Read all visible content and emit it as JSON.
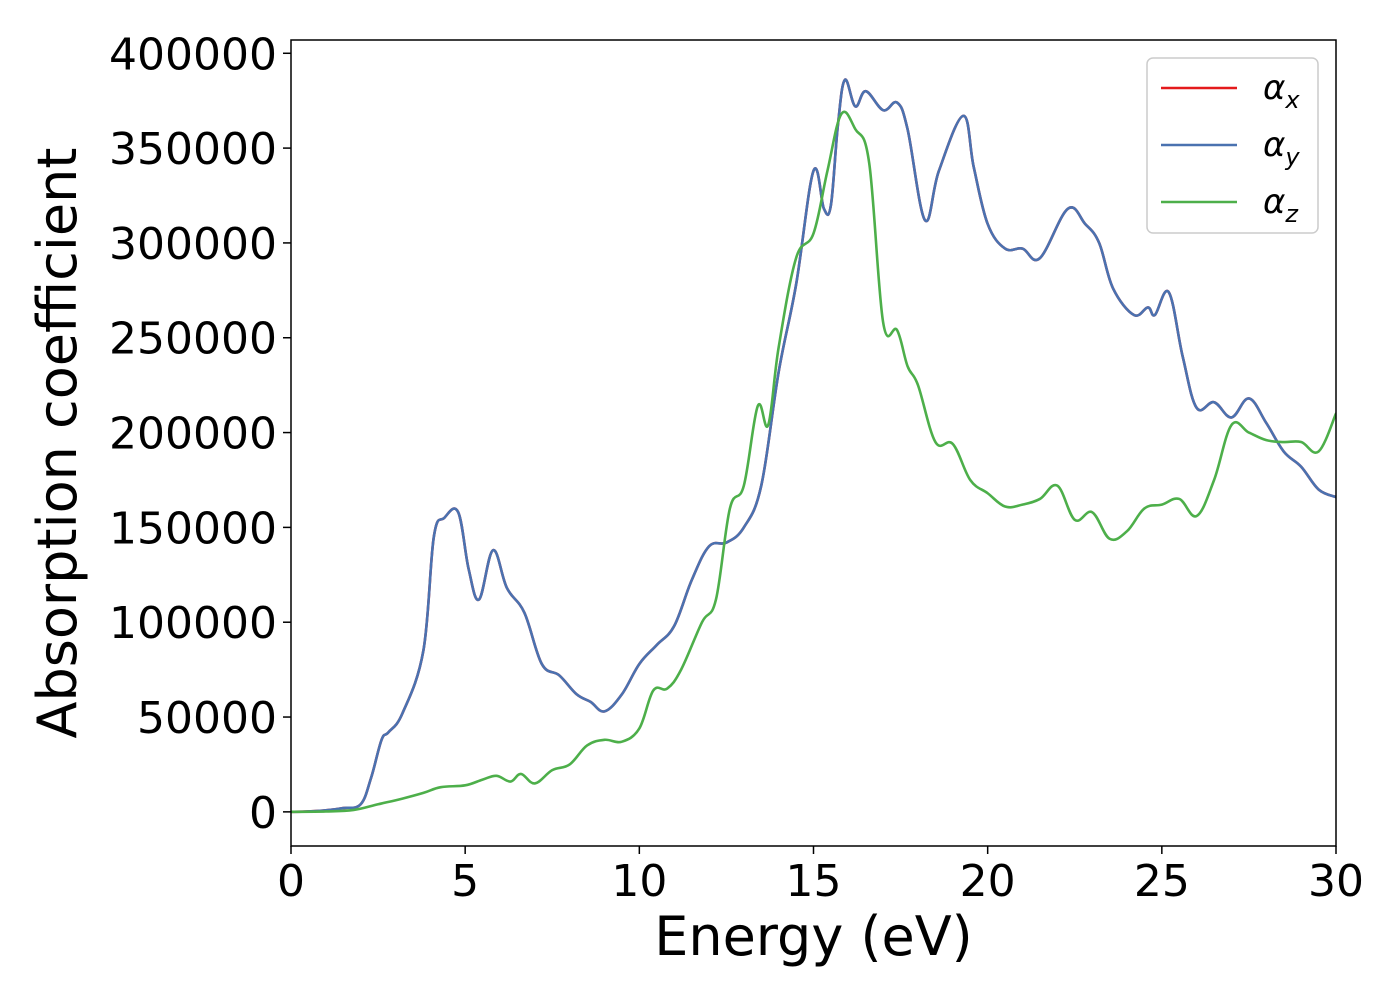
{
  "chart_data": {
    "type": "line",
    "title": "",
    "xlabel": "Energy (eV)",
    "ylabel": "Absorption coefficient",
    "xlim": [
      0,
      30
    ],
    "ylim": [
      -18000,
      407000
    ],
    "xticks": [
      0,
      5,
      10,
      15,
      20,
      25,
      30
    ],
    "yticks": [
      0,
      50000,
      100000,
      150000,
      200000,
      250000,
      300000,
      350000,
      400000
    ],
    "grid": false,
    "legend_position": "top-right",
    "series": [
      {
        "name": "αx",
        "label_base": "α",
        "label_sub": "x",
        "color": "#e41a1c",
        "x": [
          0,
          0.5,
          1,
          1.5,
          2,
          2.3,
          2.6,
          2.8,
          3.2,
          3.8,
          4.1,
          4.4,
          4.8,
          5.1,
          5.4,
          5.8,
          6.2,
          6.7,
          7.2,
          7.7,
          8.2,
          8.6,
          9,
          9.5,
          10,
          10.5,
          11,
          11.5,
          12,
          12.5,
          13,
          13.5,
          14,
          14.5,
          15,
          15.3,
          15.5,
          15.7,
          15.9,
          16.2,
          16.5,
          17,
          17.4,
          17.7,
          18.2,
          18.6,
          19.3,
          19.6,
          20,
          20.5,
          21,
          21.5,
          22.3,
          22.8,
          23.2,
          23.6,
          24.2,
          24.6,
          24.8,
          25.2,
          25.6,
          26,
          26.5,
          27,
          27.5,
          28,
          28.5,
          29,
          29.5,
          30
        ],
        "y": [
          0,
          200,
          800,
          2000,
          4000,
          18000,
          38000,
          42000,
          52000,
          85000,
          145000,
          155000,
          158000,
          128000,
          112000,
          138000,
          118000,
          105000,
          78000,
          72000,
          62000,
          58000,
          53000,
          62000,
          78000,
          88000,
          98000,
          122000,
          140000,
          142000,
          150000,
          172000,
          232000,
          278000,
          338000,
          318000,
          320000,
          362000,
          386000,
          372000,
          380000,
          370000,
          374000,
          360000,
          312000,
          338000,
          367000,
          340000,
          310000,
          297000,
          297000,
          292000,
          318000,
          310000,
          300000,
          276000,
          262000,
          266000,
          262000,
          274000,
          240000,
          213000,
          216000,
          208000,
          218000,
          205000,
          190000,
          182000,
          170000,
          166000
        ]
      },
      {
        "name": "αy",
        "label_base": "α",
        "label_sub": "y",
        "color": "#4a72b0",
        "x": [
          0,
          0.5,
          1,
          1.5,
          2,
          2.3,
          2.6,
          2.8,
          3.2,
          3.8,
          4.1,
          4.4,
          4.8,
          5.1,
          5.4,
          5.8,
          6.2,
          6.7,
          7.2,
          7.7,
          8.2,
          8.6,
          9,
          9.5,
          10,
          10.5,
          11,
          11.5,
          12,
          12.5,
          13,
          13.5,
          14,
          14.5,
          15,
          15.3,
          15.5,
          15.7,
          15.9,
          16.2,
          16.5,
          17,
          17.4,
          17.7,
          18.2,
          18.6,
          19.3,
          19.6,
          20,
          20.5,
          21,
          21.5,
          22.3,
          22.8,
          23.2,
          23.6,
          24.2,
          24.6,
          24.8,
          25.2,
          25.6,
          26,
          26.5,
          27,
          27.5,
          28,
          28.5,
          29,
          29.5,
          30
        ],
        "y": [
          0,
          200,
          800,
          2000,
          4000,
          18000,
          38000,
          42000,
          52000,
          85000,
          145000,
          155000,
          158000,
          128000,
          112000,
          138000,
          118000,
          105000,
          78000,
          72000,
          62000,
          58000,
          53000,
          62000,
          78000,
          88000,
          98000,
          122000,
          140000,
          142000,
          150000,
          172000,
          232000,
          278000,
          338000,
          318000,
          320000,
          362000,
          386000,
          372000,
          380000,
          370000,
          374000,
          360000,
          312000,
          338000,
          367000,
          340000,
          310000,
          297000,
          297000,
          292000,
          318000,
          310000,
          300000,
          276000,
          262000,
          266000,
          262000,
          274000,
          240000,
          213000,
          216000,
          208000,
          218000,
          205000,
          190000,
          182000,
          170000,
          166000
        ]
      },
      {
        "name": "αz",
        "label_base": "α",
        "label_sub": "z",
        "color": "#4daf4a",
        "x": [
          0,
          1,
          1.8,
          2.5,
          3.2,
          3.8,
          4.3,
          5,
          5.5,
          5.9,
          6.3,
          6.6,
          7,
          7.5,
          8,
          8.5,
          9,
          9.5,
          10,
          10.4,
          10.8,
          11.2,
          11.8,
          12.2,
          12.6,
          13,
          13.4,
          13.7,
          14,
          14.5,
          15,
          15.4,
          15.8,
          16.2,
          16.6,
          17,
          17.4,
          17.7,
          18,
          18.5,
          19,
          19.5,
          20,
          20.5,
          21,
          21.5,
          22,
          22.5,
          23,
          23.5,
          24,
          24.5,
          25,
          25.5,
          26,
          26.5,
          27,
          27.5,
          28,
          28.5,
          29,
          29.5,
          30
        ],
        "y": [
          0,
          200,
          1000,
          4000,
          7000,
          10000,
          13000,
          14000,
          17000,
          19000,
          16000,
          20000,
          15000,
          22000,
          25000,
          35000,
          38000,
          37000,
          44000,
          64000,
          65000,
          75000,
          100000,
          112000,
          160000,
          172000,
          214000,
          204000,
          245000,
          292000,
          305000,
          338000,
          368000,
          360000,
          342000,
          258000,
          254000,
          235000,
          225000,
          195000,
          194000,
          175000,
          168000,
          161000,
          162000,
          165000,
          172000,
          154000,
          158000,
          144000,
          148000,
          160000,
          162000,
          165000,
          156000,
          175000,
          204000,
          200000,
          196000,
          195000,
          195000,
          190000,
          210000
        ]
      }
    ]
  }
}
